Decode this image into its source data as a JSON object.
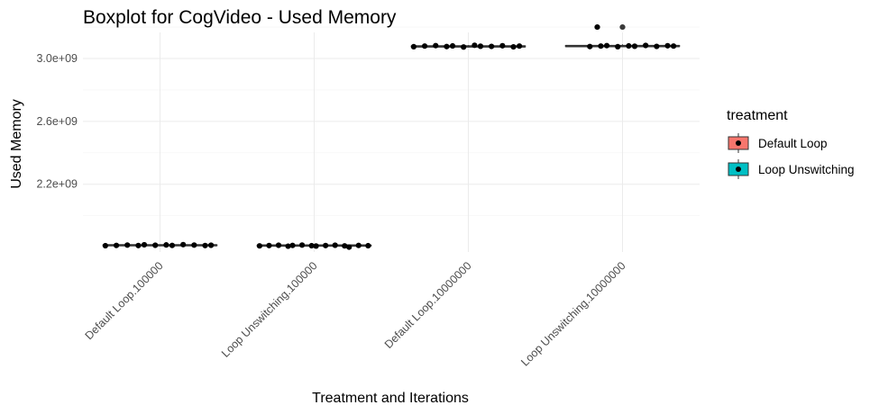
{
  "chart_data": {
    "type": "box",
    "title": "Boxplot for CogVideo - Used Memory",
    "xlabel": "Treatment and Iterations",
    "ylabel": "Used Memory",
    "categories": [
      "Default Loop.100000",
      "Loop Unswitching.100000",
      "Default Loop.10000000",
      "Loop Unswitching.10000000"
    ],
    "yticks": [
      2200000000,
      2600000000,
      3000000000
    ],
    "ytick_labels": [
      "2.2e+09",
      "2.6e+09",
      "3.0e+09"
    ],
    "ylim": [
      1730000000,
      3260000000
    ],
    "grid": true,
    "legend": {
      "title": "treatment",
      "placement": "right",
      "entries": [
        {
          "label": "Default Loop",
          "color": "#f8766d"
        },
        {
          "label": "Loop Unswitching",
          "color": "#00bfc4"
        }
      ]
    },
    "boxes": [
      {
        "category": "Default Loop.100000",
        "treatment": "Default Loop",
        "min": 1808000000,
        "q1": 1810000000,
        "median": 1812000000,
        "q3": 1814000000,
        "max": 1818000000
      },
      {
        "category": "Loop Unswitching.100000",
        "treatment": "Loop Unswitching",
        "min": 1805000000,
        "q1": 1808000000,
        "median": 1810000000,
        "q3": 1812000000,
        "max": 1816000000
      },
      {
        "category": "Default Loop.10000000",
        "treatment": "Default Loop",
        "min": 3070000000,
        "q1": 3074000000,
        "median": 3077000000,
        "q3": 3080000000,
        "max": 3085000000
      },
      {
        "category": "Loop Unswitching.10000000",
        "treatment": "Loop Unswitching",
        "min": 3072000000,
        "q1": 3076000000,
        "median": 3079000000,
        "q3": 3083000000,
        "max": 3090000000
      }
    ],
    "points": [
      {
        "category": "Default Loop.100000",
        "values": [
          1809000000,
          1811000000,
          1813000000,
          1810000000,
          1815000000,
          1812000000,
          1814000000,
          1811000000,
          1816000000,
          1813000000,
          1810000000,
          1812000000
        ]
      },
      {
        "category": "Loop Unswitching.100000",
        "values": [
          1808000000,
          1810000000,
          1812000000,
          1806000000,
          1811000000,
          1813000000,
          1809000000,
          1807000000,
          1810000000,
          1812000000,
          1808000000,
          1800000000,
          1811000000,
          1809000000
        ]
      },
      {
        "category": "Default Loop.10000000",
        "values": [
          3075000000,
          3079000000,
          3082000000,
          3076000000,
          3080000000,
          3073000000,
          3084000000,
          3078000000,
          3077000000,
          3081000000,
          3074000000,
          3079000000
        ]
      },
      {
        "category": "Loop Unswitching.10000000",
        "values": [
          3200000000,
          3200000000,
          3076000000,
          3079000000,
          3082000000,
          3075000000,
          3080000000,
          3078000000,
          3083000000,
          3077000000,
          3081000000,
          3079000000
        ]
      }
    ]
  }
}
